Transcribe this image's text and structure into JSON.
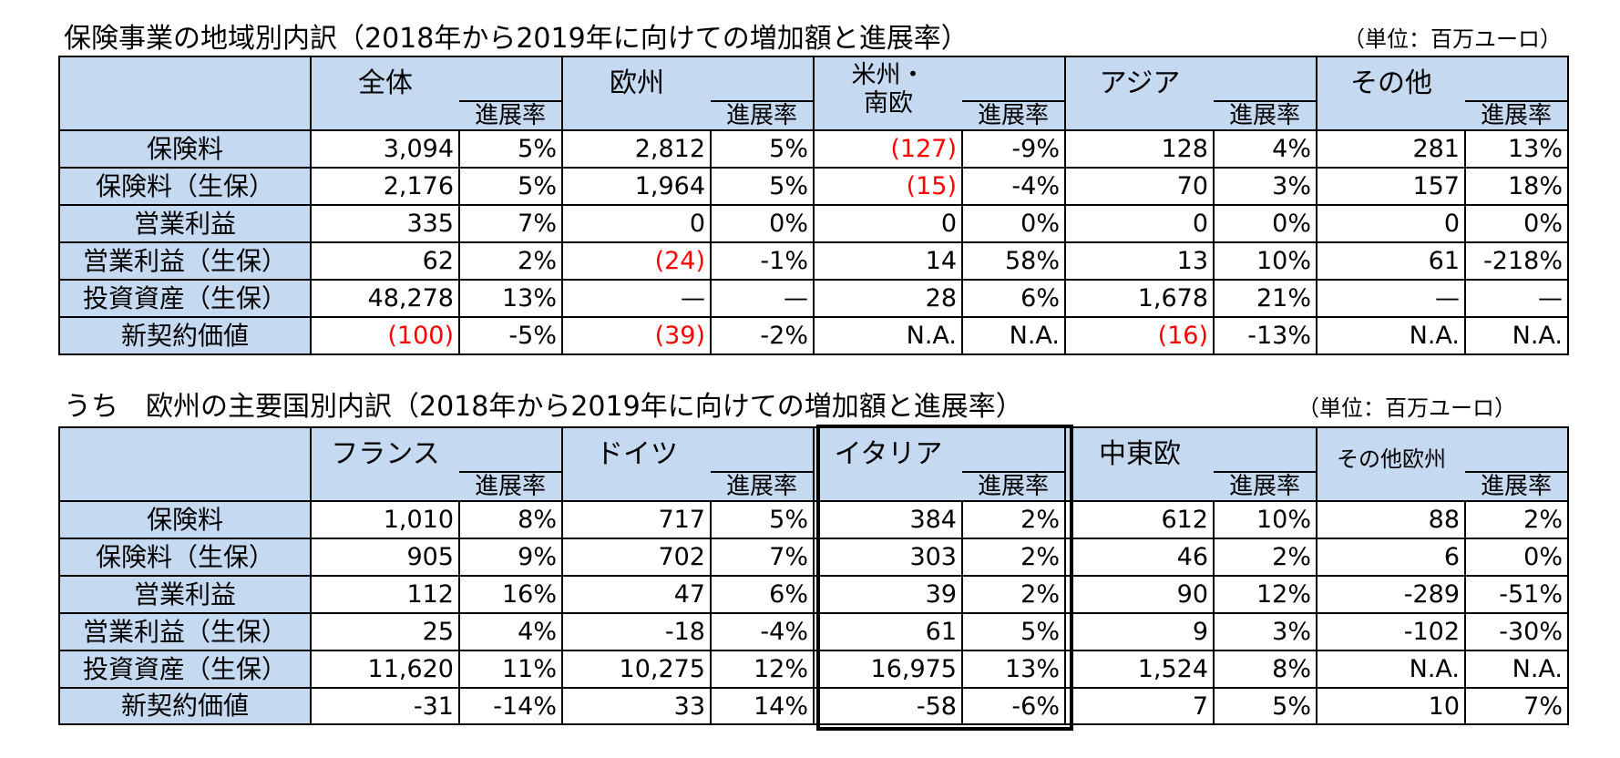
{
  "table1": {
    "title": "保険事業の地域別内訳（2018年から2019年に向けての増加額と進展率）",
    "unit": "（単位：百万ユーロ）",
    "rate_label": "進展率",
    "groups": [
      "全体",
      "欧州",
      "米州・南欧",
      "アジア",
      "その他"
    ],
    "rows": [
      {
        "label": "保険料",
        "cells": [
          "3,094",
          "5%",
          "2,812",
          "5%",
          "(127)",
          "-9%",
          "128",
          "4%",
          "281",
          "13%"
        ]
      },
      {
        "label": "保険料（生保）",
        "cells": [
          "2,176",
          "5%",
          "1,964",
          "5%",
          "(15)",
          "-4%",
          "70",
          "3%",
          "157",
          "18%"
        ]
      },
      {
        "label": "営業利益",
        "cells": [
          "335",
          "7%",
          "0",
          "0%",
          "0",
          "0%",
          "0",
          "0%",
          "0",
          "0%"
        ]
      },
      {
        "label": "営業利益（生保）",
        "cells": [
          "62",
          "2%",
          "(24)",
          "-1%",
          "14",
          "58%",
          "13",
          "10%",
          "61",
          "-218%"
        ]
      },
      {
        "label": "投資資産（生保）",
        "cells": [
          "48,278",
          "13%",
          "—",
          "—",
          "28",
          "6%",
          "1,678",
          "21%",
          "—",
          "—"
        ]
      },
      {
        "label": "新契約価値",
        "cells": [
          "(100)",
          "-5%",
          "(39)",
          "-2%",
          "N.A.",
          "N.A.",
          "(16)",
          "-13%",
          "N.A.",
          "N.A."
        ]
      }
    ]
  },
  "table2": {
    "title": "うち　欧州の主要国別内訳（2018年から2019年に向けての増加額と進展率）",
    "unit": "（単位：百万ユーロ）",
    "rate_label": "進展率",
    "groups": [
      "フランス",
      "ドイツ",
      "イタリア",
      "中東欧",
      "その他欧州"
    ],
    "rows": [
      {
        "label": "保険料",
        "cells": [
          "1,010",
          "8%",
          "717",
          "5%",
          "384",
          "2%",
          "612",
          "10%",
          "88",
          "2%"
        ]
      },
      {
        "label": "保険料（生保）",
        "cells": [
          "905",
          "9%",
          "702",
          "7%",
          "303",
          "2%",
          "46",
          "2%",
          "6",
          "0%"
        ]
      },
      {
        "label": "営業利益",
        "cells": [
          "112",
          "16%",
          "47",
          "6%",
          "39",
          "2%",
          "90",
          "12%",
          "-289",
          "-51%"
        ]
      },
      {
        "label": "営業利益（生保）",
        "cells": [
          "25",
          "4%",
          "-18",
          "-4%",
          "61",
          "5%",
          "9",
          "3%",
          "-102",
          "-30%"
        ]
      },
      {
        "label": "投資資産（生保）",
        "cells": [
          "11,620",
          "11%",
          "10,275",
          "12%",
          "16,975",
          "13%",
          "1,524",
          "8%",
          "N.A.",
          "N.A."
        ]
      },
      {
        "label": "新契約価値",
        "cells": [
          "-31",
          "-14%",
          "33",
          "14%",
          "-58",
          "-6%",
          "7",
          "5%",
          "10",
          "7%"
        ]
      }
    ]
  }
}
